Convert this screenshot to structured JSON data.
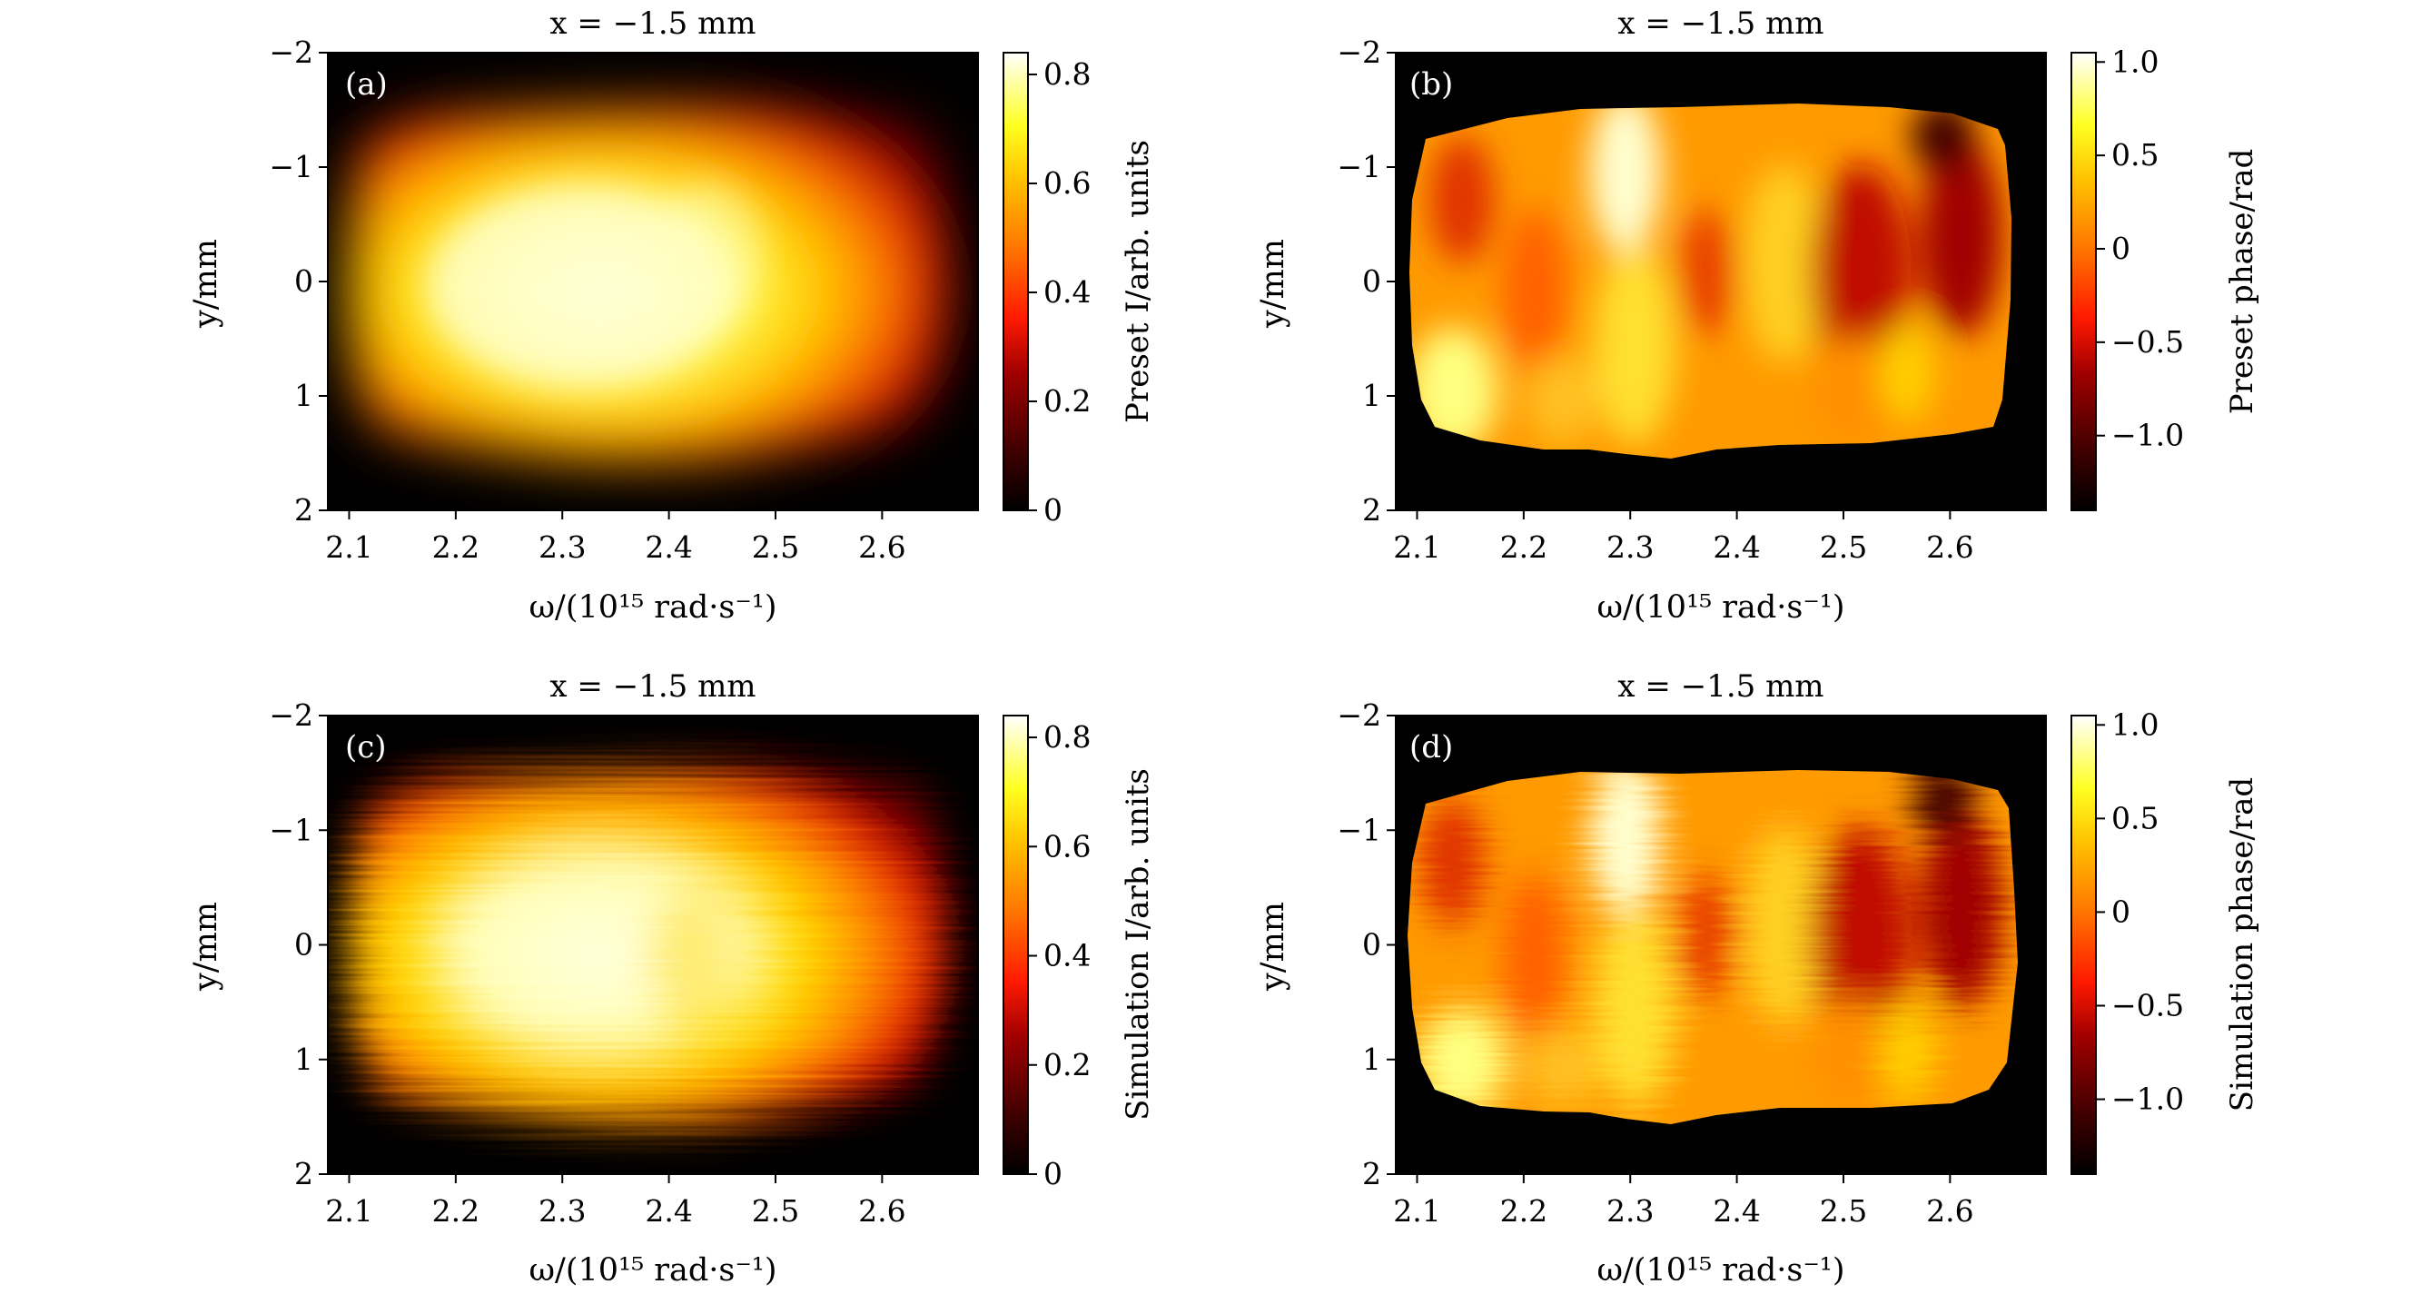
{
  "figure": {
    "panels": [
      {
        "id": "a",
        "tag": "(a)",
        "title": "x = −1.5 mm",
        "xlabel": "ω/(10¹⁵ rad·s⁻¹)",
        "ylabel": "y/mm",
        "xticks": [
          "2.1",
          "2.2",
          "2.3",
          "2.4",
          "2.5",
          "2.6"
        ],
        "yticks": [
          "−2",
          "−1",
          "0",
          "1",
          "2"
        ],
        "colorbar_label": "Preset I/arb. units",
        "colorbar_ticks": [
          "0",
          "0.2",
          "0.4",
          "0.6",
          "0.8"
        ]
      },
      {
        "id": "b",
        "tag": "(b)",
        "title": "x = −1.5 mm",
        "xlabel": "ω/(10¹⁵ rad·s⁻¹)",
        "ylabel": "y/mm",
        "xticks": [
          "2.1",
          "2.2",
          "2.3",
          "2.4",
          "2.5",
          "2.6"
        ],
        "yticks": [
          "−2",
          "−1",
          "0",
          "1",
          "2"
        ],
        "colorbar_label": "Preset phase/rad",
        "colorbar_ticks": [
          "1.0",
          "0.5",
          "0",
          "−0.5",
          "−1.0"
        ]
      },
      {
        "id": "c",
        "tag": "(c)",
        "title": "x = −1.5 mm",
        "xlabel": "ω/(10¹⁵ rad·s⁻¹)",
        "ylabel": "y/mm",
        "xticks": [
          "2.1",
          "2.2",
          "2.3",
          "2.4",
          "2.5",
          "2.6"
        ],
        "yticks": [
          "−2",
          "−1",
          "0",
          "1",
          "2"
        ],
        "colorbar_label": "Simulation I/arb. units",
        "colorbar_ticks": [
          "0",
          "0.2",
          "0.4",
          "0.6",
          "0.8"
        ]
      },
      {
        "id": "d",
        "tag": "(d)",
        "title": "x = −1.5 mm",
        "xlabel": "ω/(10¹⁵ rad·s⁻¹)",
        "ylabel": "y/mm",
        "xticks": [
          "2.1",
          "2.2",
          "2.3",
          "2.4",
          "2.5",
          "2.6"
        ],
        "yticks": [
          "−2",
          "−1",
          "0",
          "1",
          "2"
        ],
        "colorbar_label": "Simulation phase/rad",
        "colorbar_ticks": [
          "1.0",
          "0.5",
          "0",
          "−0.5",
          "−1.0"
        ]
      }
    ]
  },
  "chart_data": [
    {
      "type": "heatmap",
      "panel": "(a)",
      "title": "x = −1.5 mm",
      "xlabel": "ω/(10¹⁵ rad·s⁻¹)",
      "ylabel": "y/mm",
      "xlim": [
        2.08,
        2.69
      ],
      "ylim": [
        2,
        -2
      ],
      "colorbar": {
        "label": "Preset I/arb. units",
        "range": [
          0,
          0.84
        ],
        "colormap": "hot"
      },
      "support": {
        "omega_range": [
          2.1,
          2.67
        ],
        "y_range": [
          -1.5,
          1.5
        ]
      },
      "peak_intensity": 0.84,
      "peak_location": {
        "omega": 2.33,
        "y": 0.1
      }
    },
    {
      "type": "heatmap",
      "panel": "(b)",
      "title": "x = −1.5 mm",
      "xlabel": "ω/(10¹⁵ rad·s⁻¹)",
      "ylabel": "y/mm",
      "xlim": [
        2.08,
        2.69
      ],
      "ylim": [
        2,
        -2
      ],
      "colorbar": {
        "label": "Preset phase/rad",
        "range": [
          -1.4,
          1.05
        ],
        "colormap": "hot"
      },
      "support": {
        "omega_range": [
          2.1,
          2.67
        ],
        "y_range": [
          -1.55,
          1.55
        ]
      }
    },
    {
      "type": "heatmap",
      "panel": "(c)",
      "title": "x = −1.5 mm",
      "xlabel": "ω/(10¹⁵ rad·s⁻¹)",
      "ylabel": "y/mm",
      "xlim": [
        2.08,
        2.69
      ],
      "ylim": [
        2,
        -2
      ],
      "colorbar": {
        "label": "Simulation I/arb. units",
        "range": [
          0,
          0.84
        ],
        "colormap": "hot"
      },
      "support": {
        "omega_range": [
          2.1,
          2.67
        ],
        "y_range": [
          -1.55,
          1.55
        ]
      },
      "peak_intensity": 0.84,
      "peak_location": {
        "omega": 2.36,
        "y": 0.15
      }
    },
    {
      "type": "heatmap",
      "panel": "(d)",
      "title": "x = −1.5 mm",
      "xlabel": "ω/(10¹⁵ rad·s⁻¹)",
      "ylabel": "y/mm",
      "xlim": [
        2.08,
        2.69
      ],
      "ylim": [
        2,
        -2
      ],
      "colorbar": {
        "label": "Simulation phase/rad",
        "range": [
          -1.4,
          1.05
        ],
        "colormap": "hot"
      },
      "support": {
        "omega_range": [
          2.1,
          2.68
        ],
        "y_range": [
          -1.55,
          1.55
        ]
      }
    }
  ]
}
